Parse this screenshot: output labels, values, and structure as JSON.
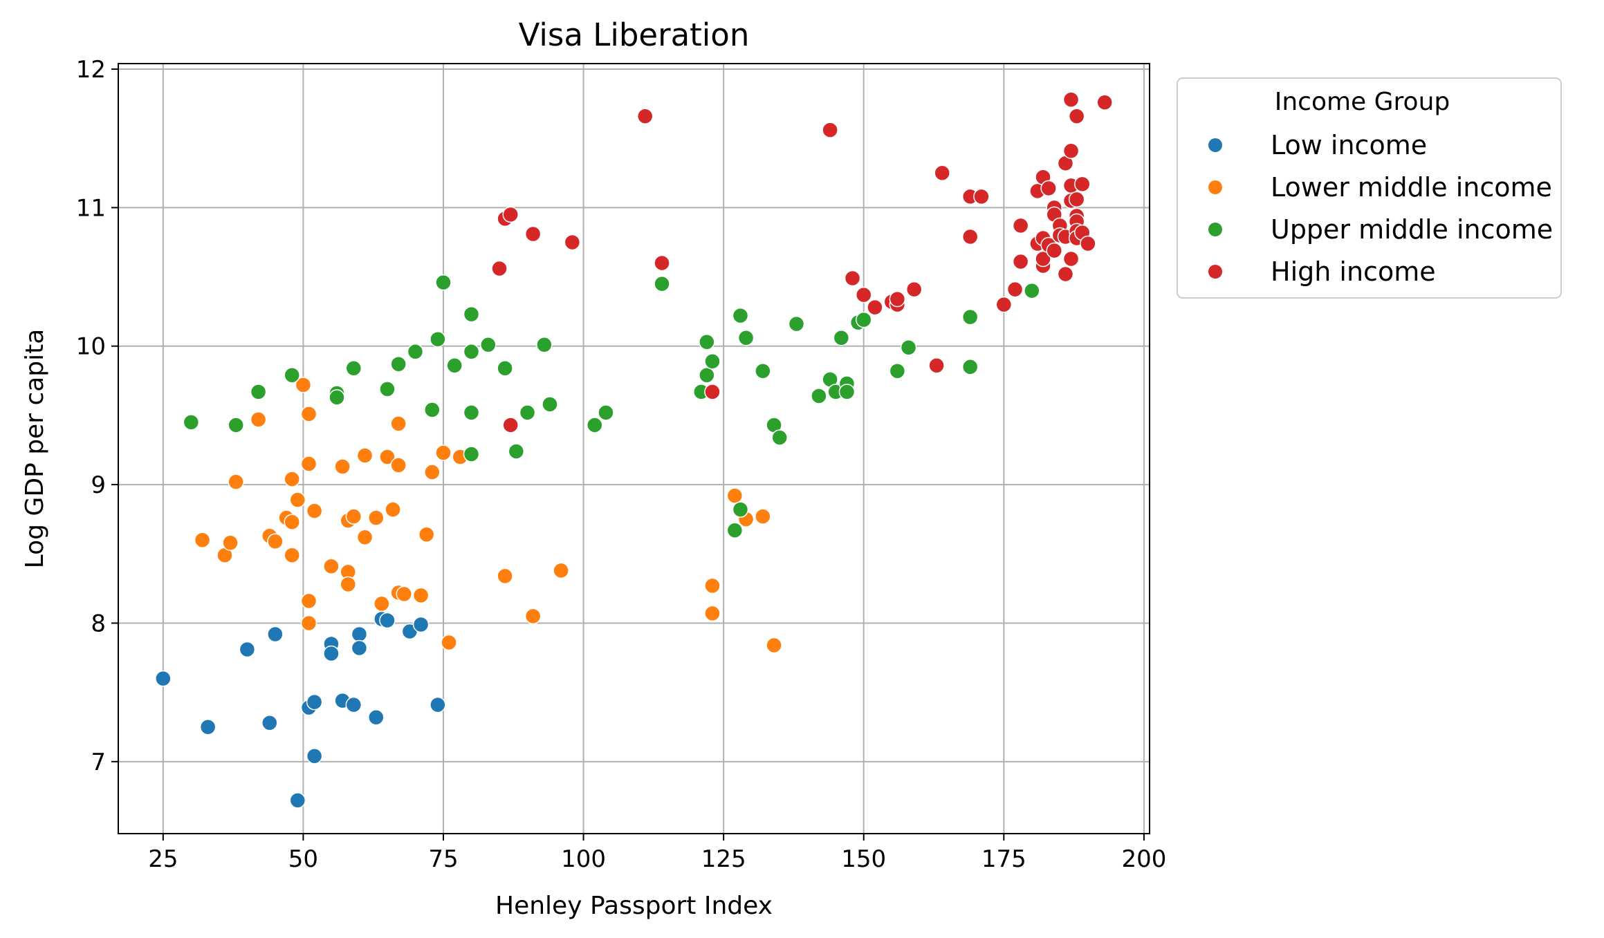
{
  "chart_data": {
    "type": "scatter",
    "title": "Visa Liberation",
    "xlabel": "Henley Passport Index",
    "ylabel": "Log GDP per capita",
    "xlim": [
      17,
      201
    ],
    "ylim": [
      6.48,
      12.04
    ],
    "xticks": [
      "25",
      "50",
      "75",
      "100",
      "125",
      "150",
      "175",
      "200"
    ],
    "yticks": [
      "7",
      "8",
      "9",
      "10",
      "11",
      "12"
    ],
    "grid": true,
    "legend": {
      "title": "Income Group",
      "placement": "outside-top-right"
    },
    "series": [
      {
        "name": "Low income",
        "color": "#1f77b4",
        "points": [
          [
            25,
            7.6
          ],
          [
            33,
            7.25
          ],
          [
            40,
            7.81
          ],
          [
            44,
            7.28
          ],
          [
            45,
            7.92
          ],
          [
            49,
            6.72
          ],
          [
            51,
            7.39
          ],
          [
            52,
            7.43
          ],
          [
            52,
            7.04
          ],
          [
            55,
            7.85
          ],
          [
            55,
            7.78
          ],
          [
            57,
            7.44
          ],
          [
            59,
            7.41
          ],
          [
            60,
            7.92
          ],
          [
            60,
            7.82
          ],
          [
            63,
            7.32
          ],
          [
            64,
            8.03
          ],
          [
            65,
            8.02
          ],
          [
            69,
            7.94
          ],
          [
            71,
            7.99
          ],
          [
            74,
            7.41
          ]
        ]
      },
      {
        "name": "Lower middle income",
        "color": "#ff7f0e",
        "points": [
          [
            32,
            8.6
          ],
          [
            36,
            8.49
          ],
          [
            37,
            8.58
          ],
          [
            38,
            9.02
          ],
          [
            42,
            9.47
          ],
          [
            44,
            8.63
          ],
          [
            45,
            8.59
          ],
          [
            47,
            8.76
          ],
          [
            48,
            8.73
          ],
          [
            48,
            9.04
          ],
          [
            48,
            8.49
          ],
          [
            49,
            8.89
          ],
          [
            50,
            9.72
          ],
          [
            51,
            9.51
          ],
          [
            51,
            9.15
          ],
          [
            51,
            8.16
          ],
          [
            51,
            8.0
          ],
          [
            52,
            8.81
          ],
          [
            55,
            8.41
          ],
          [
            57,
            9.13
          ],
          [
            58,
            8.74
          ],
          [
            58,
            8.37
          ],
          [
            58,
            8.28
          ],
          [
            59,
            8.77
          ],
          [
            61,
            9.21
          ],
          [
            61,
            8.62
          ],
          [
            63,
            8.76
          ],
          [
            64,
            8.14
          ],
          [
            65,
            9.2
          ],
          [
            66,
            8.82
          ],
          [
            67,
            9.44
          ],
          [
            67,
            9.14
          ],
          [
            67,
            8.22
          ],
          [
            68,
            8.21
          ],
          [
            71,
            8.2
          ],
          [
            72,
            8.64
          ],
          [
            73,
            9.09
          ],
          [
            75,
            9.23
          ],
          [
            76,
            7.86
          ],
          [
            78,
            9.2
          ],
          [
            86,
            8.34
          ],
          [
            91,
            8.05
          ],
          [
            96,
            8.38
          ],
          [
            123,
            8.27
          ],
          [
            123,
            8.07
          ],
          [
            127,
            8.92
          ],
          [
            129,
            8.75
          ],
          [
            132,
            8.77
          ],
          [
            134,
            7.84
          ]
        ]
      },
      {
        "name": "Upper middle income",
        "color": "#2ca02c",
        "points": [
          [
            30,
            9.45
          ],
          [
            38,
            9.43
          ],
          [
            42,
            9.67
          ],
          [
            48,
            9.79
          ],
          [
            56,
            9.66
          ],
          [
            56,
            9.63
          ],
          [
            59,
            9.84
          ],
          [
            65,
            9.69
          ],
          [
            67,
            9.87
          ],
          [
            70,
            9.96
          ],
          [
            73,
            9.54
          ],
          [
            74,
            10.05
          ],
          [
            75,
            10.46
          ],
          [
            77,
            9.86
          ],
          [
            80,
            10.23
          ],
          [
            80,
            9.96
          ],
          [
            80,
            9.52
          ],
          [
            80,
            9.22
          ],
          [
            83,
            10.01
          ],
          [
            86,
            9.84
          ],
          [
            88,
            9.24
          ],
          [
            90,
            9.52
          ],
          [
            93,
            10.01
          ],
          [
            94,
            9.58
          ],
          [
            102,
            9.43
          ],
          [
            104,
            9.52
          ],
          [
            114,
            10.45
          ],
          [
            121,
            9.67
          ],
          [
            122,
            10.03
          ],
          [
            122,
            9.79
          ],
          [
            123,
            9.89
          ],
          [
            127,
            8.67
          ],
          [
            128,
            8.82
          ],
          [
            128,
            10.22
          ],
          [
            129,
            10.06
          ],
          [
            132,
            9.82
          ],
          [
            134,
            9.43
          ],
          [
            135,
            9.34
          ],
          [
            138,
            10.16
          ],
          [
            142,
            9.64
          ],
          [
            144,
            9.76
          ],
          [
            145,
            9.67
          ],
          [
            146,
            10.06
          ],
          [
            147,
            9.73
          ],
          [
            147,
            9.67
          ],
          [
            149,
            10.17
          ],
          [
            150,
            10.19
          ],
          [
            156,
            9.82
          ],
          [
            158,
            9.99
          ],
          [
            169,
            10.21
          ],
          [
            169,
            9.85
          ],
          [
            180,
            10.4
          ]
        ]
      },
      {
        "name": "High income",
        "color": "#d62728",
        "points": [
          [
            85,
            10.56
          ],
          [
            86,
            10.92
          ],
          [
            87,
            10.95
          ],
          [
            87,
            9.43
          ],
          [
            91,
            10.81
          ],
          [
            98,
            10.75
          ],
          [
            111,
            11.66
          ],
          [
            114,
            10.6
          ],
          [
            123,
            9.67
          ],
          [
            144,
            11.56
          ],
          [
            148,
            10.49
          ],
          [
            150,
            10.37
          ],
          [
            152,
            10.28
          ],
          [
            155,
            10.32
          ],
          [
            156,
            10.3
          ],
          [
            156,
            10.34
          ],
          [
            159,
            10.41
          ],
          [
            163,
            9.86
          ],
          [
            164,
            11.25
          ],
          [
            169,
            11.08
          ],
          [
            169,
            10.79
          ],
          [
            171,
            11.08
          ],
          [
            175,
            10.3
          ],
          [
            177,
            10.41
          ],
          [
            178,
            10.87
          ],
          [
            178,
            10.61
          ],
          [
            181,
            11.12
          ],
          [
            181,
            10.74
          ],
          [
            182,
            11.22
          ],
          [
            182,
            10.78
          ],
          [
            182,
            10.58
          ],
          [
            182,
            10.63
          ],
          [
            183,
            11.14
          ],
          [
            183,
            10.73
          ],
          [
            184,
            11.0
          ],
          [
            184,
            10.95
          ],
          [
            184,
            10.69
          ],
          [
            185,
            10.87
          ],
          [
            185,
            10.8
          ],
          [
            186,
            11.32
          ],
          [
            186,
            10.79
          ],
          [
            186,
            10.52
          ],
          [
            187,
            11.78
          ],
          [
            187,
            11.41
          ],
          [
            187,
            11.16
          ],
          [
            187,
            11.05
          ],
          [
            187,
            10.63
          ],
          [
            188,
            11.66
          ],
          [
            188,
            11.06
          ],
          [
            188,
            10.94
          ],
          [
            188,
            10.9
          ],
          [
            188,
            10.83
          ],
          [
            188,
            10.78
          ],
          [
            189,
            11.17
          ],
          [
            189,
            10.82
          ],
          [
            190,
            10.74
          ],
          [
            193,
            11.76
          ]
        ]
      }
    ]
  }
}
